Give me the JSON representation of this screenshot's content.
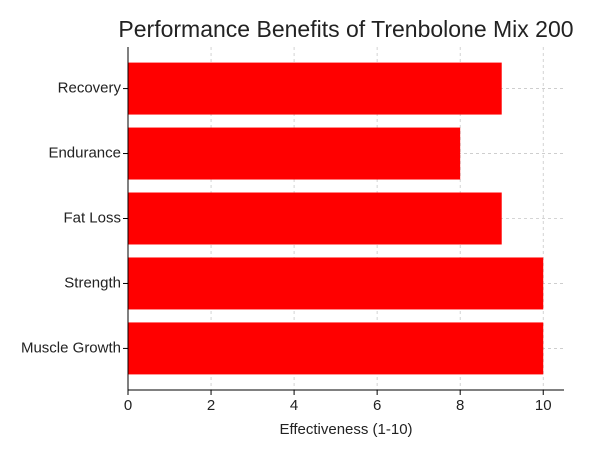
{
  "chart_data": {
    "type": "barh",
    "title": "Performance Benefits of Trenbolone Mix 200",
    "xlabel": "Effectiveness (1-10)",
    "categories": [
      "Recovery",
      "Endurance",
      "Fat Loss",
      "Strength",
      "Muscle Growth"
    ],
    "values": [
      9,
      8,
      9,
      10,
      10
    ],
    "color": "#ff0000",
    "xlim": [
      0,
      10.5
    ],
    "xticks": [
      0,
      2,
      4,
      6,
      8,
      10
    ],
    "grid": true
  }
}
